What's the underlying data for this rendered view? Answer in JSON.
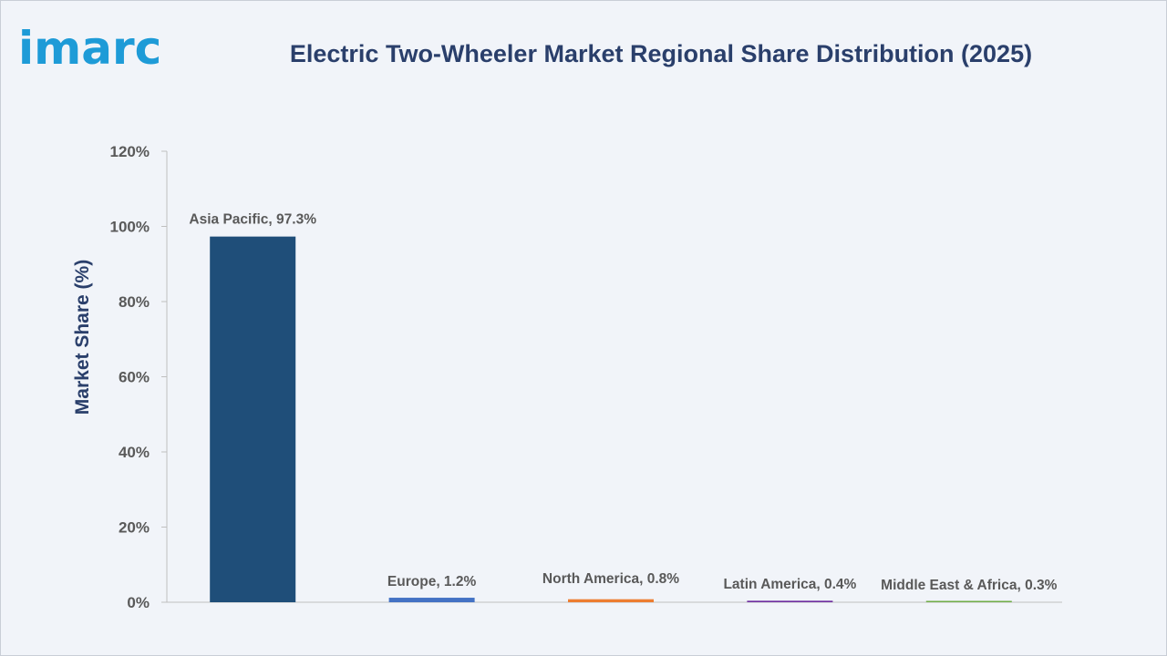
{
  "header": {
    "logo_text": "imarc",
    "brand_color": "#1e9bd7"
  },
  "chart_data": {
    "type": "bar",
    "title": "Electric Two-Wheeler Market Regional Share Distribution (2025)",
    "xlabel": "",
    "ylabel": "Market Share (%)",
    "ylim": [
      0,
      120
    ],
    "yticks": [
      "0%",
      "20%",
      "40%",
      "60%",
      "80%",
      "100%",
      "120%"
    ],
    "grid": false,
    "legend": "none",
    "categories": [
      "Asia Pacific",
      "Europe",
      "North America",
      "Latin America",
      "Middle East & Africa"
    ],
    "values": [
      97.3,
      1.2,
      0.8,
      0.4,
      0.3
    ],
    "data_labels": [
      "Asia Pacific, 97.3%",
      "Europe, 1.2%",
      "North America, 0.8%",
      "Latin America, 0.4%",
      "Middle East & Africa, 0.3%"
    ],
    "colors": [
      "#1f4e79",
      "#4472c4",
      "#ed7d31",
      "#7030a0",
      "#70ad47"
    ]
  }
}
